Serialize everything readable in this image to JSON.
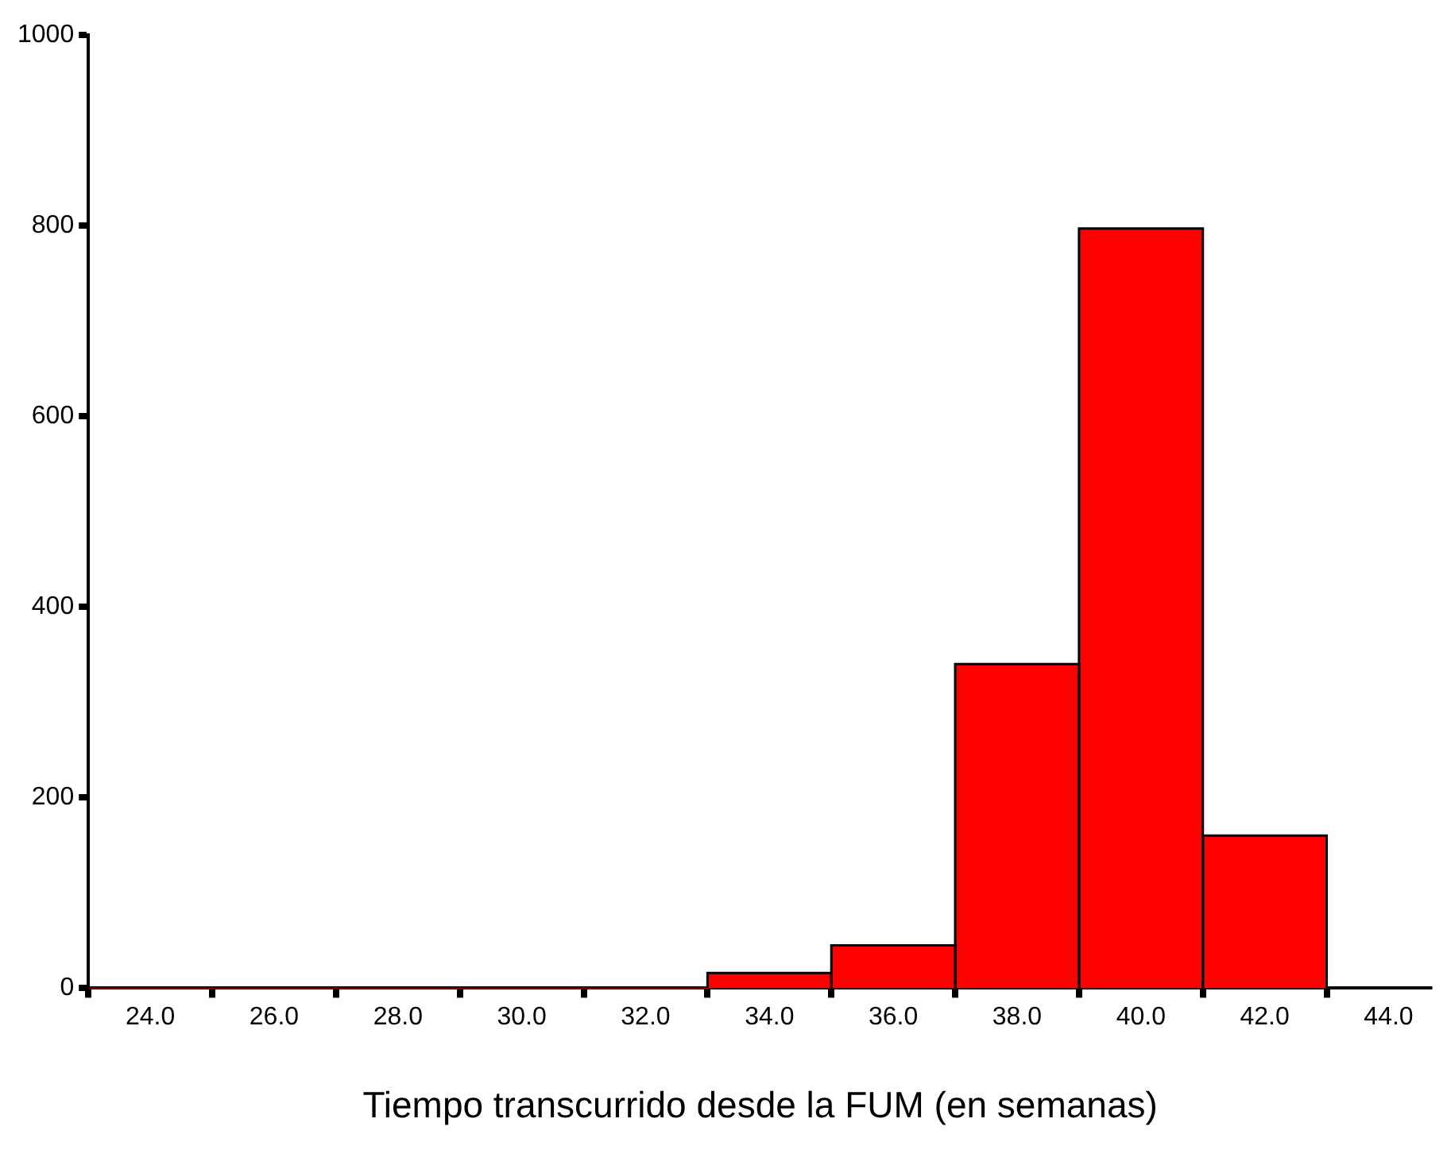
{
  "chart_data": {
    "type": "histogram",
    "xlabel": "Tiempo transcurrido desde la FUM (en semanas)",
    "bins": [
      23,
      25,
      27,
      29,
      31,
      33,
      35,
      37,
      39,
      41,
      43
    ],
    "values": [
      0,
      0,
      0,
      0,
      0,
      16,
      45,
      340,
      797,
      160
    ],
    "color": "#ff0000",
    "xlim": [
      23,
      44.7
    ],
    "xticks": [
      {
        "value": 24,
        "label": "24.0"
      },
      {
        "value": 26,
        "label": "26.0"
      },
      {
        "value": 28,
        "label": "28.0"
      },
      {
        "value": 30,
        "label": "30.0"
      },
      {
        "value": 32,
        "label": "32.0"
      },
      {
        "value": 34,
        "label": "34.0"
      },
      {
        "value": 36,
        "label": "36.0"
      },
      {
        "value": 38,
        "label": "38.0"
      },
      {
        "value": 40,
        "label": "40.0"
      },
      {
        "value": 42,
        "label": "42.0"
      },
      {
        "value": 44,
        "label": "44.0"
      }
    ],
    "ylim": [
      0,
      1000
    ],
    "yticks": [
      0,
      200,
      400,
      600,
      800,
      1000
    ],
    "grid": false,
    "legend": false
  }
}
